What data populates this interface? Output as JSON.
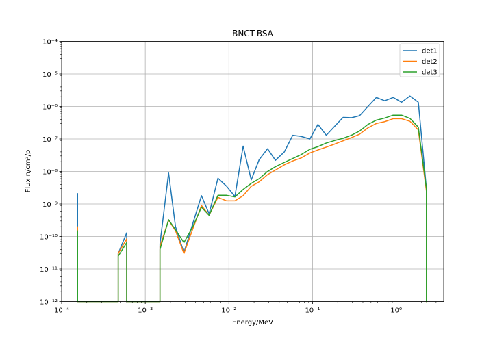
{
  "chart_data": {
    "type": "line",
    "title": "BNCT-BSA",
    "xlabel": "Energy/MeV",
    "ylabel": "Flux n/cm²/p",
    "x_scale": "log",
    "y_scale": "log",
    "xlim": [
      0.0001,
      3.7
    ],
    "ylim": [
      1e-12,
      0.0001
    ],
    "grid": true,
    "legend_position": "top-right",
    "x_tick_labels": [
      "10⁻⁴",
      "10⁻³",
      "10⁻²",
      "10⁻¹",
      "10⁰"
    ],
    "y_tick_labels": [
      "10⁻¹²",
      "10⁻¹¹",
      "10⁻¹⁰",
      "10⁻⁹",
      "10⁻⁸",
      "10⁻⁷",
      "10⁻⁶",
      "10⁻⁵",
      "10⁻⁴"
    ],
    "series": [
      {
        "name": "det1",
        "color": "#1f77b4",
        "points": [
          [
            0.000155,
            1e-12
          ],
          [
            0.000155,
            2.1e-09
          ],
          [
            0.000155,
            1e-12
          ],
          [
            0.000475,
            1e-12
          ],
          [
            0.000475,
            3e-11
          ],
          [
            0.0006,
            1.3e-10
          ],
          [
            0.0006,
            1e-12
          ],
          [
            0.0015,
            1e-12
          ],
          [
            0.0015,
            6e-11
          ],
          [
            0.0019,
            9e-09
          ],
          [
            0.0023,
            2e-10
          ],
          [
            0.0029,
            3.2e-11
          ],
          [
            0.0037,
            2.5e-10
          ],
          [
            0.0047,
            1.8e-09
          ],
          [
            0.0058,
            5e-10
          ],
          [
            0.0074,
            6.2e-09
          ],
          [
            0.0094,
            3.5e-09
          ],
          [
            0.0118,
            1.7e-09
          ],
          [
            0.0148,
            6e-08
          ],
          [
            0.0185,
            5.5e-09
          ],
          [
            0.023,
            2.3e-08
          ],
          [
            0.029,
            5e-08
          ],
          [
            0.036,
            2.2e-08
          ],
          [
            0.046,
            4e-08
          ],
          [
            0.058,
            1.3e-07
          ],
          [
            0.073,
            1.2e-07
          ],
          [
            0.093,
            1e-07
          ],
          [
            0.116,
            2.8e-07
          ],
          [
            0.146,
            1.3e-07
          ],
          [
            0.185,
            2.5e-07
          ],
          [
            0.232,
            4.6e-07
          ],
          [
            0.292,
            4.5e-07
          ],
          [
            0.365,
            5.2e-07
          ],
          [
            0.46,
            1e-06
          ],
          [
            0.58,
            1.9e-06
          ],
          [
            0.73,
            1.5e-06
          ],
          [
            0.92,
            1.9e-06
          ],
          [
            1.16,
            1.35e-06
          ],
          [
            1.46,
            2.1e-06
          ],
          [
            1.84,
            1.35e-06
          ],
          [
            2.3,
            3e-09
          ],
          [
            2.3,
            1e-12
          ]
        ]
      },
      {
        "name": "det2",
        "color": "#ff7f0e",
        "points": [
          [
            0.000155,
            1e-12
          ],
          [
            0.000155,
            2e-10
          ],
          [
            0.000155,
            1e-12
          ],
          [
            0.000475,
            1e-12
          ],
          [
            0.000475,
            3e-11
          ],
          [
            0.0006,
            8.5e-11
          ],
          [
            0.0006,
            1e-12
          ],
          [
            0.0015,
            1e-12
          ],
          [
            0.0015,
            5e-11
          ],
          [
            0.0019,
            3.2e-10
          ],
          [
            0.0023,
            1.5e-10
          ],
          [
            0.0029,
            3e-11
          ],
          [
            0.0037,
            1.7e-10
          ],
          [
            0.0047,
            9e-10
          ],
          [
            0.0058,
            4.5e-10
          ],
          [
            0.0074,
            1.6e-09
          ],
          [
            0.0094,
            1.25e-09
          ],
          [
            0.0118,
            1.25e-09
          ],
          [
            0.0148,
            1.8e-09
          ],
          [
            0.0185,
            3.5e-09
          ],
          [
            0.023,
            4.8e-09
          ],
          [
            0.029,
            8e-09
          ],
          [
            0.036,
            1.1e-08
          ],
          [
            0.046,
            1.6e-08
          ],
          [
            0.058,
            2.1e-08
          ],
          [
            0.073,
            2.6e-08
          ],
          [
            0.093,
            3.7e-08
          ],
          [
            0.116,
            4.6e-08
          ],
          [
            0.146,
            5.6e-08
          ],
          [
            0.185,
            7e-08
          ],
          [
            0.232,
            8.8e-08
          ],
          [
            0.292,
            1.1e-07
          ],
          [
            0.365,
            1.4e-07
          ],
          [
            0.46,
            2.2e-07
          ],
          [
            0.58,
            3e-07
          ],
          [
            0.73,
            3.4e-07
          ],
          [
            0.92,
            4.2e-07
          ],
          [
            1.16,
            4.2e-07
          ],
          [
            1.46,
            3.5e-07
          ],
          [
            1.84,
            1.9e-07
          ],
          [
            2.3,
            2.5e-09
          ],
          [
            2.3,
            1e-12
          ]
        ]
      },
      {
        "name": "det3",
        "color": "#2ca02c",
        "points": [
          [
            0.000155,
            1e-12
          ],
          [
            0.000155,
            1.5e-10
          ],
          [
            0.000155,
            1e-12
          ],
          [
            0.000475,
            1e-12
          ],
          [
            0.000475,
            2.5e-11
          ],
          [
            0.0006,
            6.5e-11
          ],
          [
            0.0006,
            1e-12
          ],
          [
            0.0015,
            1e-12
          ],
          [
            0.0015,
            4e-11
          ],
          [
            0.0019,
            3.3e-10
          ],
          [
            0.0023,
            1.6e-10
          ],
          [
            0.0029,
            6.5e-11
          ],
          [
            0.0037,
            2e-10
          ],
          [
            0.0047,
            8e-10
          ],
          [
            0.0058,
            4.5e-10
          ],
          [
            0.0074,
            1.85e-09
          ],
          [
            0.0094,
            1.85e-09
          ],
          [
            0.0118,
            1.65e-09
          ],
          [
            0.0148,
            2.8e-09
          ],
          [
            0.0185,
            4.3e-09
          ],
          [
            0.023,
            6e-09
          ],
          [
            0.029,
            1e-08
          ],
          [
            0.036,
            1.4e-08
          ],
          [
            0.046,
            1.9e-08
          ],
          [
            0.058,
            2.5e-08
          ],
          [
            0.073,
            3.3e-08
          ],
          [
            0.093,
            4.8e-08
          ],
          [
            0.116,
            5.8e-08
          ],
          [
            0.146,
            7.5e-08
          ],
          [
            0.185,
            9e-08
          ],
          [
            0.232,
            1.05e-07
          ],
          [
            0.292,
            1.3e-07
          ],
          [
            0.365,
            1.75e-07
          ],
          [
            0.46,
            2.8e-07
          ],
          [
            0.58,
            3.8e-07
          ],
          [
            0.73,
            4.4e-07
          ],
          [
            0.92,
            5.4e-07
          ],
          [
            1.16,
            5.4e-07
          ],
          [
            1.46,
            4.3e-07
          ],
          [
            1.84,
            2.3e-07
          ],
          [
            2.3,
            3e-09
          ],
          [
            2.3,
            1e-12
          ]
        ]
      }
    ]
  }
}
